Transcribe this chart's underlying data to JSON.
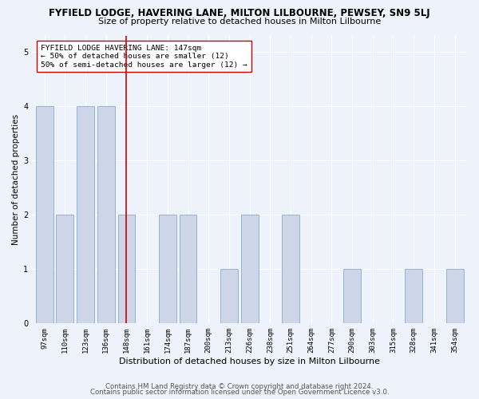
{
  "title": "FYFIELD LODGE, HAVERING LANE, MILTON LILBOURNE, PEWSEY, SN9 5LJ",
  "subtitle": "Size of property relative to detached houses in Milton Lilbourne",
  "xlabel": "Distribution of detached houses by size in Milton Lilbourne",
  "ylabel": "Number of detached properties",
  "footer1": "Contains HM Land Registry data © Crown copyright and database right 2024.",
  "footer2": "Contains public sector information licensed under the Open Government Licence v3.0.",
  "categories": [
    "97sqm",
    "110sqm",
    "123sqm",
    "136sqm",
    "148sqm",
    "161sqm",
    "174sqm",
    "187sqm",
    "200sqm",
    "213sqm",
    "226sqm",
    "238sqm",
    "251sqm",
    "264sqm",
    "277sqm",
    "290sqm",
    "303sqm",
    "315sqm",
    "328sqm",
    "341sqm",
    "354sqm"
  ],
  "values": [
    4,
    2,
    4,
    4,
    2,
    0,
    2,
    2,
    0,
    1,
    2,
    0,
    2,
    0,
    0,
    1,
    0,
    0,
    1,
    0,
    1
  ],
  "bar_color": "#ccd6e8",
  "bar_edge_color": "#8aaacb",
  "highlight_index": 4,
  "highlight_color": "#cc0000",
  "annotation_text": "FYFIELD LODGE HAVERING LANE: 147sqm\n← 50% of detached houses are smaller (12)\n50% of semi-detached houses are larger (12) →",
  "annotation_box_color": "#ffffff",
  "annotation_box_edge": "#cc0000",
  "ylim": [
    0,
    5.3
  ],
  "yticks": [
    0,
    1,
    2,
    3,
    4,
    5
  ],
  "background_color": "#eef2fa",
  "plot_background": "#eef2fa",
  "grid_color": "#ffffff",
  "title_fontsize": 8.5,
  "subtitle_fontsize": 8.0,
  "xlabel_fontsize": 8.0,
  "ylabel_fontsize": 7.5,
  "tick_fontsize": 6.5,
  "annotation_fontsize": 6.8,
  "footer_fontsize": 6.2
}
